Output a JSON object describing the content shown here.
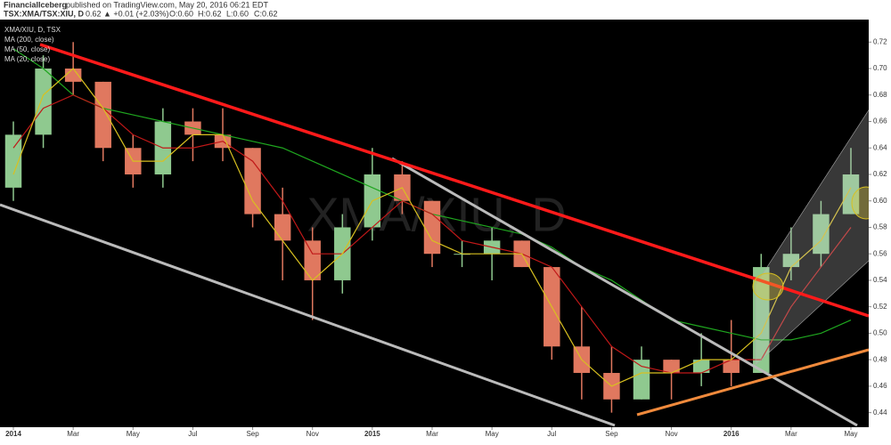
{
  "header": {
    "publisher": "FinancialIceberg",
    "published": "published on TradingView.com, May 20, 2016 06:21 EDT",
    "symbol": "TSX:XMA/TSX:XIU, D",
    "last": "0.62",
    "change": "▲ +0.01 (+2.03%)",
    "open": "O:0.60",
    "high": "H:0.62",
    "low": "L:0.60",
    "close": "C:0.62"
  },
  "chart_data": {
    "type": "candlestick",
    "title": "XMA/XIU, D, TSX",
    "watermark": "XMA/XIU, D",
    "x": [
      "2014-01",
      "2014-02",
      "2014-03",
      "2014-04",
      "2014-05",
      "2014-06",
      "2014-07",
      "2014-08",
      "2014-09",
      "2014-10",
      "2014-11",
      "2014-12",
      "2015-01",
      "2015-02",
      "2015-03",
      "2015-04",
      "2015-05",
      "2015-06",
      "2015-07",
      "2015-08",
      "2015-09",
      "2015-10",
      "2015-11",
      "2015-12",
      "2016-01",
      "2016-02",
      "2016-03",
      "2016-04",
      "2016-05"
    ],
    "open": [
      0.61,
      0.65,
      0.7,
      0.69,
      0.64,
      0.62,
      0.66,
      0.65,
      0.64,
      0.59,
      0.57,
      0.54,
      0.58,
      0.62,
      0.6,
      0.56,
      0.56,
      0.57,
      0.55,
      0.49,
      0.47,
      0.45,
      0.48,
      0.47,
      0.48,
      0.47,
      0.55,
      0.56,
      0.59
    ],
    "high": [
      0.66,
      0.71,
      0.72,
      0.69,
      0.65,
      0.67,
      0.67,
      0.67,
      0.64,
      0.61,
      0.58,
      0.59,
      0.64,
      0.63,
      0.6,
      0.57,
      0.58,
      0.57,
      0.55,
      0.52,
      0.49,
      0.49,
      0.48,
      0.5,
      0.51,
      0.56,
      0.58,
      0.6,
      0.64
    ],
    "low": [
      0.6,
      0.64,
      0.68,
      0.63,
      0.61,
      0.61,
      0.63,
      0.63,
      0.58,
      0.54,
      0.51,
      0.53,
      0.57,
      0.59,
      0.55,
      0.55,
      0.54,
      0.55,
      0.48,
      0.45,
      0.44,
      0.45,
      0.45,
      0.46,
      0.46,
      0.47,
      0.54,
      0.55,
      0.59
    ],
    "close": [
      0.65,
      0.7,
      0.69,
      0.64,
      0.62,
      0.66,
      0.65,
      0.64,
      0.59,
      0.57,
      0.54,
      0.58,
      0.62,
      0.6,
      0.56,
      0.56,
      0.57,
      0.55,
      0.49,
      0.47,
      0.45,
      0.48,
      0.47,
      0.48,
      0.47,
      0.55,
      0.56,
      0.59,
      0.62
    ],
    "up_color": "#8fc98f",
    "down_color": "#e0785f",
    "series": [
      {
        "name": "MA (200, close)",
        "color": "#1fa61f",
        "values": [
          0.715,
          0.7,
          0.68,
          0.67,
          0.665,
          0.66,
          0.655,
          0.65,
          0.645,
          0.64,
          0.63,
          0.62,
          0.61,
          0.6,
          0.59,
          0.585,
          0.58,
          0.575,
          0.565,
          0.55,
          0.54,
          0.525,
          0.51,
          0.505,
          0.5,
          0.495,
          0.495,
          0.5,
          0.51
        ]
      },
      {
        "name": "MA (50, close)",
        "color": "#c01818",
        "values": [
          0.64,
          0.67,
          0.68,
          0.67,
          0.65,
          0.64,
          0.64,
          0.645,
          0.63,
          0.6,
          0.56,
          0.56,
          0.58,
          0.6,
          0.59,
          0.57,
          0.565,
          0.56,
          0.55,
          0.52,
          0.49,
          0.475,
          0.47,
          0.47,
          0.48,
          0.48,
          0.52,
          0.55,
          0.58
        ]
      },
      {
        "name": "MA (20, close)",
        "color": "#d8c020",
        "values": [
          0.62,
          0.68,
          0.7,
          0.67,
          0.63,
          0.63,
          0.65,
          0.65,
          0.6,
          0.57,
          0.54,
          0.56,
          0.6,
          0.61,
          0.57,
          0.56,
          0.56,
          0.56,
          0.52,
          0.48,
          0.46,
          0.47,
          0.47,
          0.48,
          0.48,
          0.5,
          0.55,
          0.57,
          0.61
        ]
      }
    ],
    "xlim": [
      "2014-01",
      "2016-05"
    ],
    "xticks": [
      {
        "value": "2014-01",
        "label": "2014"
      },
      {
        "value": "2014-03",
        "label": "Mar"
      },
      {
        "value": "2014-05",
        "label": "May"
      },
      {
        "value": "2014-07",
        "label": "Jul"
      },
      {
        "value": "2014-09",
        "label": "Sep"
      },
      {
        "value": "2014-11",
        "label": "Nov"
      },
      {
        "value": "2015-01",
        "label": "2015"
      },
      {
        "value": "2015-03",
        "label": "Mar"
      },
      {
        "value": "2015-05",
        "label": "May"
      },
      {
        "value": "2015-07",
        "label": "Jul"
      },
      {
        "value": "2015-09",
        "label": "Sep"
      },
      {
        "value": "2015-11",
        "label": "Nov"
      },
      {
        "value": "2016-01",
        "label": "2016"
      },
      {
        "value": "2016-03",
        "label": "Mar"
      },
      {
        "value": "2016-05",
        "label": "May"
      }
    ],
    "ylim": [
      0.429,
      0.737
    ],
    "yticks": [
      0.44,
      0.46,
      0.48,
      {
        "value": 0.5,
        "label": "0.50"
      },
      0.52,
      0.54,
      0.56,
      0.58,
      {
        "value": 0.6,
        "label": "0.60"
      },
      0.62,
      0.64,
      0.66,
      0.68,
      {
        "value": 0.7,
        "label": "0.70"
      },
      0.72
    ]
  }
}
